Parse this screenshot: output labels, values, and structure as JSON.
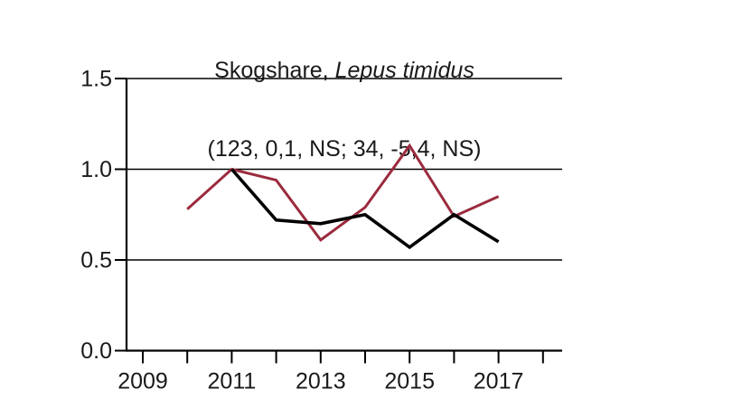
{
  "title": {
    "main_regular": "Skogshare, ",
    "main_italic": "Lepus timidus",
    "subtitle": "(123, 0,1, NS; 34, -5,4, NS)"
  },
  "colors": {
    "background": "#ffffff",
    "axis": "#000000",
    "text": "#1a1a1a",
    "red_series": "#9b2b3e",
    "black_series": "#000000"
  },
  "chart_data": {
    "type": "line",
    "title": "Skogshare, Lepus timidus",
    "subtitle": "(123, 0,1, NS; 34, -5,4, NS)",
    "x_axis": {
      "tick_years": [
        2009,
        2010,
        2011,
        2012,
        2013,
        2014,
        2015,
        2016,
        2017,
        2018
      ],
      "labeled_years": [
        2009,
        2011,
        2013,
        2015,
        2017
      ]
    },
    "y_axis": {
      "ticks": [
        0,
        0.5,
        1,
        1.5
      ],
      "tick_labels": [
        "0.0",
        "0.5",
        "1.0",
        "1.5"
      ],
      "range": [
        0,
        1.5
      ]
    },
    "grid": {
      "horizontal_lines_at": [
        0.5,
        1,
        1.5
      ],
      "vertical": false
    },
    "legend_position": "none",
    "series": [
      {
        "name": "red-line",
        "color": "#9b2b3e",
        "stroke_width": 3,
        "x": [
          2010,
          2011,
          2012,
          2013,
          2014,
          2015,
          2016,
          2017
        ],
        "y": [
          0.78,
          1.0,
          0.94,
          0.61,
          0.79,
          1.13,
          0.74,
          0.85
        ]
      },
      {
        "name": "black-line",
        "color": "#000000",
        "stroke_width": 3.6,
        "x": [
          2011,
          2012,
          2013,
          2014,
          2015,
          2016,
          2017
        ],
        "y": [
          1.0,
          0.72,
          0.7,
          0.75,
          0.57,
          0.75,
          0.6
        ]
      }
    ]
  }
}
